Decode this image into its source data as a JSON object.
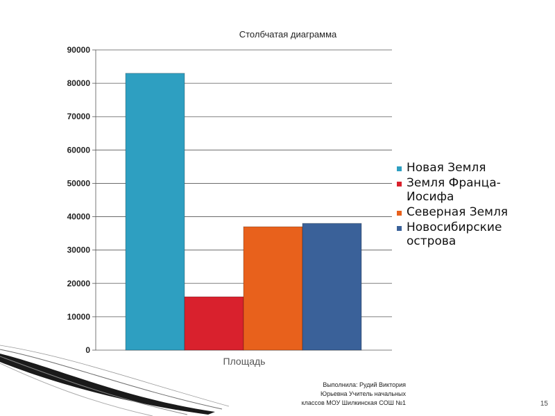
{
  "chart_data": {
    "type": "bar",
    "title": "Столбчатая диаграмма",
    "xlabel": "Площадь",
    "ylabel": "",
    "ylim": [
      0,
      90000
    ],
    "yticks": [
      0,
      10000,
      20000,
      30000,
      40000,
      50000,
      60000,
      70000,
      80000,
      90000
    ],
    "grid": true,
    "legend_position": "right",
    "categories": [
      "Площадь"
    ],
    "series": [
      {
        "name": "Новая Земля",
        "values": [
          83000
        ],
        "color": "#2e9fc1"
      },
      {
        "name": "Земля Франца-\nИосифа",
        "values": [
          16000
        ],
        "color": "#d9212d"
      },
      {
        "name": "Северная Земля",
        "values": [
          37000
        ],
        "color": "#e8611c"
      },
      {
        "name": "Новосибирские\nострова",
        "values": [
          38000
        ],
        "color": "#3a6199"
      }
    ]
  },
  "footer": {
    "text": "Выполнила:  Рудий Виктория\nЮрьевна Учитель начальных\nклассов МОУ Шилкинская СОШ №1"
  },
  "slide_number": "15"
}
